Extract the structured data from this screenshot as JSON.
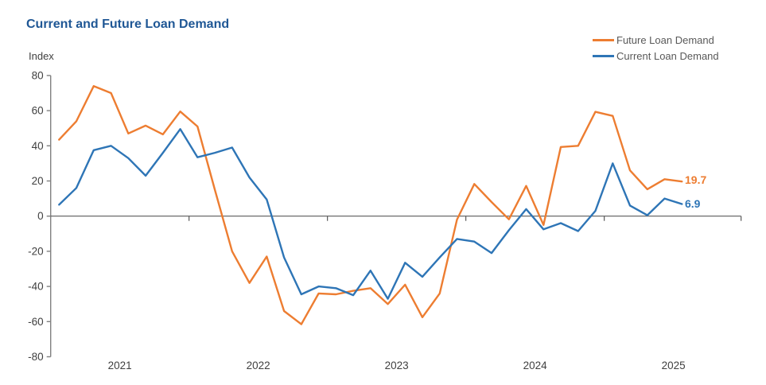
{
  "title": "Current and Future Loan Demand",
  "title_color": "#1F5795",
  "axis_title": "Index",
  "legend": {
    "items": [
      {
        "label": "Future Loan Demand",
        "color": "#ED7D31"
      },
      {
        "label": "Current Loan Demand",
        "color": "#2E75B6"
      }
    ]
  },
  "end_labels": {
    "future": {
      "text": "19.7",
      "color": "#ED7D31"
    },
    "current": {
      "text": "6.9",
      "color": "#2E75B6"
    }
  },
  "chart_data": {
    "type": "line",
    "title": "Current and Future Loan Demand",
    "ylabel": "Index",
    "ylim": [
      -80,
      80
    ],
    "grid": "zero-line-only",
    "legend_position": "top-right",
    "x_axis": {
      "labels": [
        "2021",
        "2022",
        "2023",
        "2024",
        "2025"
      ],
      "label_positions_index": [
        3.51,
        11.51,
        19.51,
        27.51,
        35.51
      ],
      "tick_positions_index": [
        7.51,
        15.51,
        23.51,
        31.51,
        39.42
      ],
      "note": "37 survey observations, ~8 per year, Jan 2021 through early 2025"
    },
    "y_axis": {
      "ticks": [
        80,
        60,
        40,
        20,
        0,
        -20,
        -40,
        -60,
        -80
      ]
    },
    "series": [
      {
        "name": "Future Loan Demand",
        "color": "#ED7D31",
        "last_value_label": "19.7",
        "values": [
          43.5,
          54,
          74,
          70,
          47,
          51.5,
          46.5,
          59.5,
          51,
          15,
          -20,
          -38,
          -23,
          -54,
          -61.5,
          -44,
          -44.5,
          -42.5,
          -41,
          -50,
          -39,
          -57.5,
          -44,
          -2,
          18.3,
          8,
          -1.8,
          17.2,
          -5,
          39.3,
          40,
          59.3,
          57,
          26,
          15.3,
          21,
          19.7
        ]
      },
      {
        "name": "Current Loan Demand",
        "color": "#2E75B6",
        "last_value_label": "6.9",
        "values": [
          6.5,
          16,
          37.5,
          40,
          33,
          23,
          36,
          49.5,
          33.5,
          36,
          39,
          22,
          9.5,
          -23.5,
          -44.5,
          -40,
          -41,
          -45,
          -31,
          -47,
          -26.5,
          -34.5,
          -23.5,
          -13,
          -14.5,
          -21,
          -8,
          4,
          -7.5,
          -4,
          -8.5,
          3,
          30,
          6,
          0.5,
          10,
          6.9
        ]
      }
    ],
    "colors": {
      "axis_line": "#808080",
      "zero_line": "#595959",
      "tick_text": "#404040"
    }
  }
}
